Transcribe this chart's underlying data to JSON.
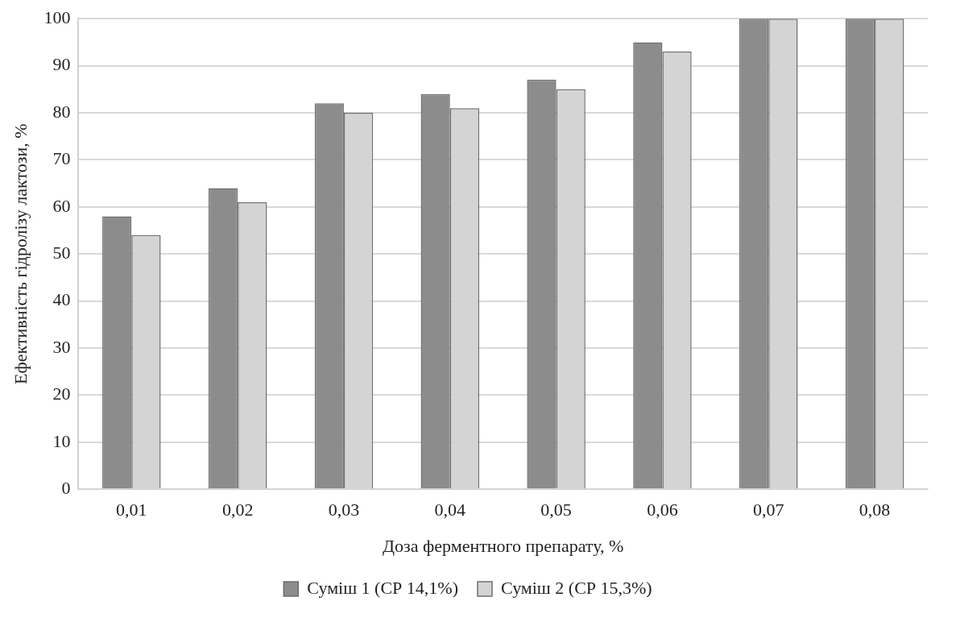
{
  "chart_data": {
    "type": "bar",
    "xlabel": "Доза ферментного препарату, %",
    "ylabel": "Ефективність гідролізу лактози, %",
    "categories": [
      "0,01",
      "0,02",
      "0,03",
      "0,04",
      "0,05",
      "0,06",
      "0,07",
      "0,08"
    ],
    "series": [
      {
        "name": "Суміш 1 (СР 14,1%)",
        "color": "#8c8c8c",
        "values": [
          58,
          64,
          82,
          84,
          87,
          95,
          100,
          100
        ]
      },
      {
        "name": "Суміш 2 (СР 15,3%)",
        "color": "#d4d4d4",
        "values": [
          54,
          61,
          80,
          81,
          85,
          93,
          100,
          100
        ]
      }
    ],
    "ylim": [
      0,
      100
    ],
    "yticks": [
      0,
      10,
      20,
      30,
      40,
      50,
      60,
      70,
      80,
      90,
      100
    ],
    "grid": "y",
    "legend": "bottom"
  }
}
